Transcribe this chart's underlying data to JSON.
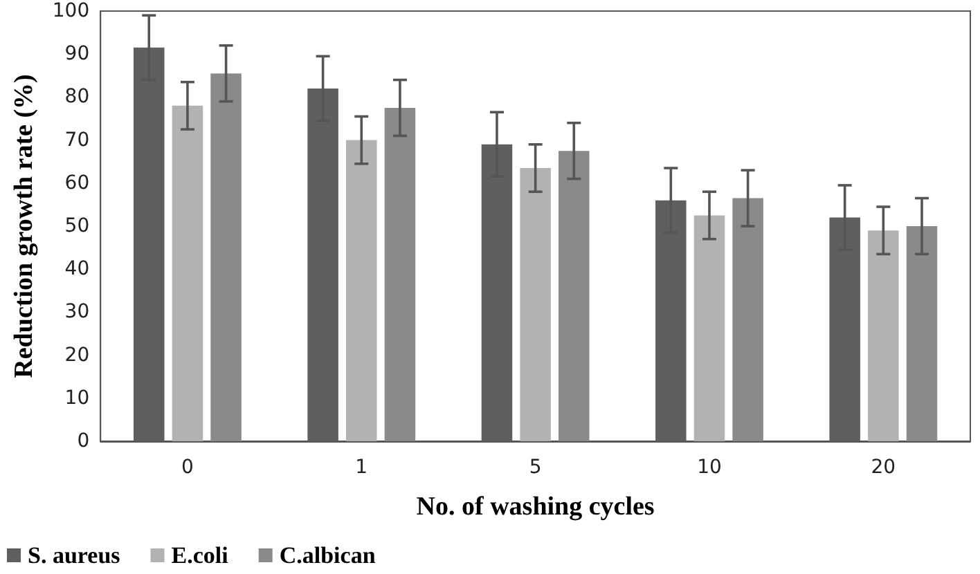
{
  "chart_data": {
    "type": "bar",
    "xlabel": "No. of washing cycles",
    "ylabel": "Reduction growth rate (%)",
    "categories": [
      "0",
      "1",
      "5",
      "10",
      "20"
    ],
    "series": [
      {
        "name": "S. aureus",
        "color": "#5f5f5f",
        "values": [
          91.5,
          82,
          69,
          56,
          52
        ],
        "errors": [
          7.5,
          7.5,
          7.5,
          7.5,
          7.5
        ]
      },
      {
        "name": "E.coli",
        "color": "#b2b2b2",
        "values": [
          78,
          70,
          63.5,
          52.5,
          49
        ],
        "errors": [
          5.5,
          5.5,
          5.5,
          5.5,
          5.5
        ]
      },
      {
        "name": "C.albican",
        "color": "#8a8a8a",
        "values": [
          85.5,
          77.5,
          67.5,
          56.5,
          50
        ],
        "errors": [
          6.5,
          6.5,
          6.5,
          6.5,
          6.5
        ]
      }
    ],
    "ylim": [
      0,
      100
    ],
    "yticks": [
      0,
      10,
      20,
      30,
      40,
      50,
      60,
      70,
      80,
      90,
      100
    ],
    "grid": false,
    "legend": "bottom left"
  }
}
